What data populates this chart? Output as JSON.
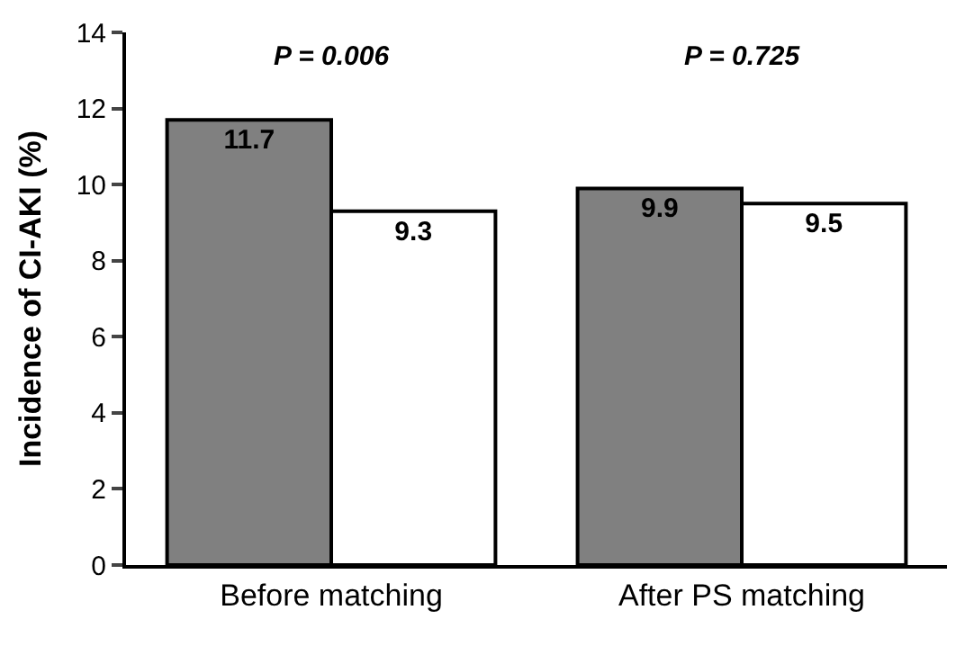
{
  "chart_data": {
    "type": "bar",
    "ylabel": "Incidence of CI-AKI (%)",
    "categories": [
      "Before matching",
      "After PS matching"
    ],
    "series": [
      {
        "color": "#808080",
        "values": [
          11.7,
          9.9
        ]
      },
      {
        "color": "#ffffff",
        "values": [
          9.3,
          9.5
        ]
      }
    ],
    "ylim": [
      0,
      14
    ],
    "yticks": [
      0,
      2,
      4,
      6,
      8,
      10,
      12,
      14
    ],
    "data_labels": true,
    "annotations": [
      "P = 0.006",
      "P = 0.725"
    ]
  }
}
